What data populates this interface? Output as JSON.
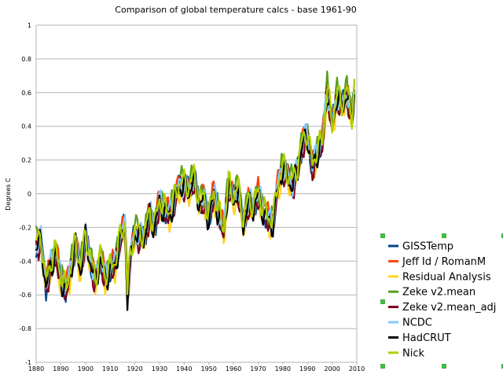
{
  "chart_data": {
    "type": "line",
    "title": "Comparison of global temperature calcs - base 1961-90",
    "xlabel": "",
    "ylabel": "Degrees C",
    "xlim": [
      1880,
      2010
    ],
    "ylim": [
      -1,
      1
    ],
    "x_ticks": [
      1880,
      1890,
      1900,
      1910,
      1920,
      1930,
      1940,
      1950,
      1960,
      1970,
      1980,
      1990,
      2000,
      2010
    ],
    "y_ticks": [
      -1,
      -0.8,
      -0.6,
      -0.4,
      -0.2,
      0,
      0.2,
      0.4,
      0.6,
      0.8,
      1
    ],
    "y_tick_labels": [
      "-1",
      "-0.8",
      "-0.6",
      "-0.4",
      "-0.2",
      "0",
      "0.2",
      "0.4",
      "0.6",
      "0.8",
      "1"
    ],
    "grid": "horizontal",
    "legend_position": "right",
    "series": [
      {
        "name": "GISSTemp",
        "color": "#004586",
        "offset": 0.0
      },
      {
        "name": "Jeff Id / RomanM",
        "color": "#ff420e",
        "offset": 0.02
      },
      {
        "name": "Residual Analysis",
        "color": "#ffd320",
        "offset": -0.03
      },
      {
        "name": "Zeke v2.mean",
        "color": "#579d1c",
        "offset": 0.03
      },
      {
        "name": "Zeke v2.mean_adj",
        "color": "#7e0021",
        "offset": -0.02
      },
      {
        "name": "NCDC",
        "color": "#83caff",
        "offset": 0.01
      },
      {
        "name": "HadCRUT",
        "color": "#000000",
        "offset": -0.01
      },
      {
        "name": "Nick",
        "color": "#aecf00",
        "offset": 0.02
      }
    ],
    "base_anomaly": {
      "x": [
        1880,
        1882,
        1884,
        1886,
        1888,
        1890,
        1892,
        1894,
        1896,
        1898,
        1900,
        1902,
        1904,
        1906,
        1908,
        1910,
        1912,
        1914,
        1916,
        1917,
        1918,
        1920,
        1922,
        1924,
        1926,
        1928,
        1930,
        1932,
        1934,
        1936,
        1938,
        1940,
        1942,
        1944,
        1946,
        1948,
        1950,
        1952,
        1954,
        1956,
        1958,
        1960,
        1962,
        1964,
        1966,
        1968,
        1970,
        1972,
        1974,
        1976,
        1978,
        1980,
        1982,
        1984,
        1986,
        1988,
        1990,
        1992,
        1994,
        1996,
        1998,
        2000,
        2002,
        2004,
        2006,
        2008,
        2009
      ],
      "y": [
        -0.3,
        -0.28,
        -0.55,
        -0.42,
        -0.35,
        -0.5,
        -0.58,
        -0.45,
        -0.3,
        -0.45,
        -0.25,
        -0.4,
        -0.52,
        -0.38,
        -0.5,
        -0.45,
        -0.42,
        -0.28,
        -0.18,
        -0.62,
        -0.4,
        -0.22,
        -0.26,
        -0.25,
        -0.12,
        -0.2,
        -0.05,
        -0.1,
        -0.12,
        -0.05,
        0.05,
        0.05,
        0.02,
        0.1,
        -0.05,
        -0.03,
        -0.15,
        0.0,
        -0.12,
        -0.22,
        0.05,
        -0.03,
        0.02,
        -0.18,
        -0.05,
        -0.08,
        0.0,
        -0.1,
        -0.15,
        -0.18,
        0.05,
        0.15,
        0.1,
        0.05,
        0.15,
        0.3,
        0.35,
        0.15,
        0.25,
        0.3,
        0.62,
        0.4,
        0.58,
        0.52,
        0.6,
        0.45,
        0.62
      ]
    }
  }
}
